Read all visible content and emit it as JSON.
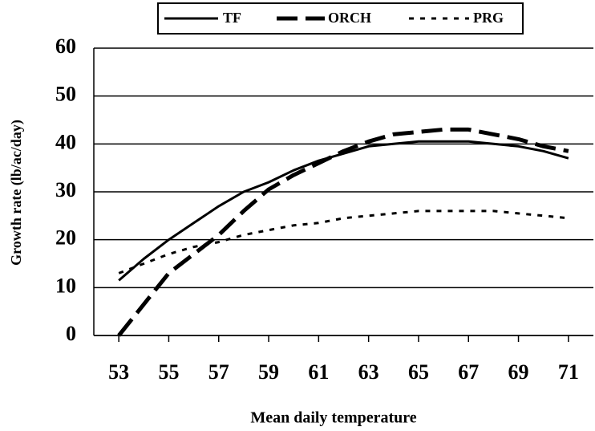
{
  "chart_data": {
    "type": "line",
    "xlabel": "Mean daily temperature",
    "ylabel": "Growth rate (lb/ac/day)",
    "x": [
      53,
      54,
      55,
      56,
      57,
      58,
      59,
      60,
      61,
      62,
      63,
      64,
      65,
      66,
      67,
      68,
      69,
      70,
      71
    ],
    "series": [
      {
        "name": "TF",
        "color": "#000000",
        "style": "solid",
        "values": [
          11.5,
          16,
          20,
          23.5,
          27,
          30,
          32,
          34.5,
          36.5,
          38,
          39.5,
          40,
          40.5,
          40.5,
          40.5,
          40,
          39.5,
          38.5,
          37
        ]
      },
      {
        "name": "ORCH",
        "color": "#000000",
        "style": "dashed",
        "values": [
          0,
          6.5,
          13,
          17,
          21,
          26,
          30.5,
          33.5,
          36,
          38.5,
          40.5,
          42,
          42.5,
          43,
          43,
          42,
          41,
          39.5,
          38.5
        ]
      },
      {
        "name": "PRG",
        "color": "#000000",
        "style": "dotted",
        "values": [
          13,
          15,
          17,
          18.5,
          19.5,
          21,
          22,
          23,
          23.5,
          24.5,
          25,
          25.5,
          26,
          26,
          26,
          26,
          25.5,
          25,
          24.5
        ]
      }
    ],
    "xlim": [
      52,
      72
    ],
    "xticks": [
      53,
      55,
      57,
      59,
      61,
      63,
      65,
      67,
      69,
      71
    ],
    "ylim": [
      0,
      60
    ],
    "yticks": [
      0,
      10,
      20,
      30,
      40,
      50,
      60
    ],
    "grid": true,
    "legend": "top"
  }
}
